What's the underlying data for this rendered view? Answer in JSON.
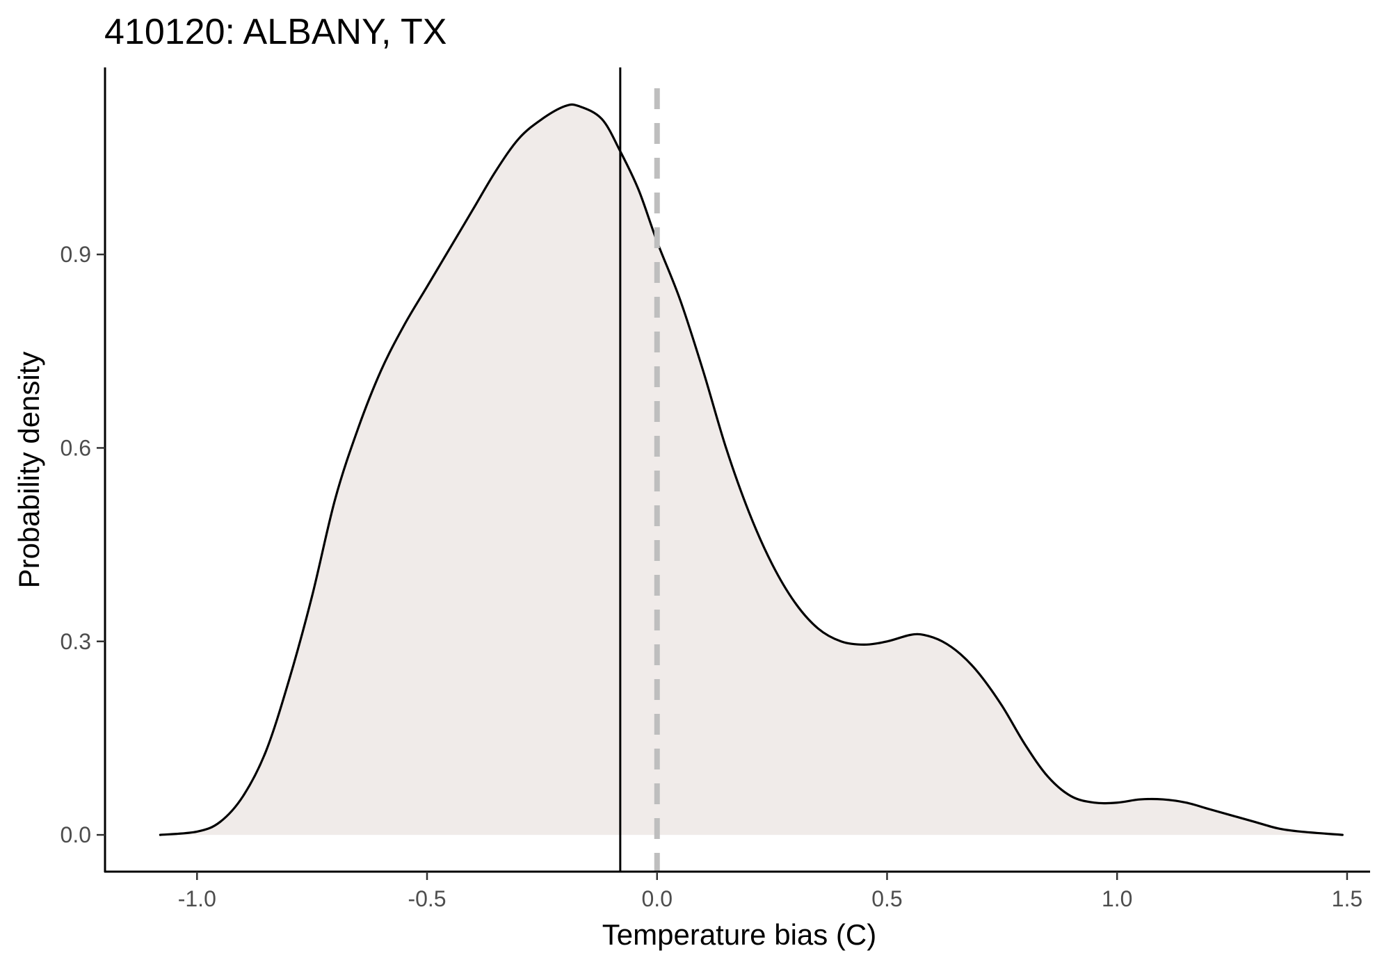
{
  "chart_data": {
    "type": "area",
    "title": "410120: ALBANY, TX",
    "xlabel": "Temperature bias (C)",
    "ylabel": "Probability density",
    "xlim": [
      -1.2,
      1.55
    ],
    "ylim": [
      -0.057,
      1.19
    ],
    "x_ticks": [
      -1.0,
      -0.5,
      0.0,
      0.5,
      1.0,
      1.5
    ],
    "x_tick_labels": [
      "-1.0",
      "-0.5",
      "0.0",
      "0.5",
      "1.0",
      "1.5"
    ],
    "y_ticks": [
      0.0,
      0.3,
      0.6,
      0.9
    ],
    "y_tick_labels": [
      "0.0",
      "0.3",
      "0.6",
      "0.9"
    ],
    "grid": false,
    "fill_color": "#f0ebe9",
    "line_color": "#000000",
    "series": [
      {
        "x": [
          -1.08,
          -1.0,
          -0.95,
          -0.9,
          -0.85,
          -0.8,
          -0.75,
          -0.7,
          -0.65,
          -0.6,
          -0.55,
          -0.5,
          -0.45,
          -0.4,
          -0.35,
          -0.3,
          -0.25,
          -0.2,
          -0.17,
          -0.12,
          -0.08,
          -0.04,
          0.0,
          0.05,
          0.1,
          0.15,
          0.2,
          0.25,
          0.3,
          0.35,
          0.4,
          0.45,
          0.5,
          0.55,
          0.58,
          0.62,
          0.66,
          0.7,
          0.75,
          0.8,
          0.85,
          0.9,
          0.95,
          1.0,
          1.05,
          1.1,
          1.15,
          1.2,
          1.25,
          1.3,
          1.35,
          1.4,
          1.49
        ],
        "y": [
          0.0,
          0.005,
          0.02,
          0.06,
          0.13,
          0.24,
          0.37,
          0.52,
          0.63,
          0.72,
          0.79,
          0.85,
          0.91,
          0.97,
          1.03,
          1.08,
          1.11,
          1.13,
          1.13,
          1.11,
          1.06,
          1.0,
          0.92,
          0.83,
          0.72,
          0.6,
          0.5,
          0.42,
          0.36,
          0.32,
          0.3,
          0.295,
          0.3,
          0.31,
          0.31,
          0.3,
          0.28,
          0.25,
          0.2,
          0.14,
          0.09,
          0.06,
          0.05,
          0.05,
          0.055,
          0.055,
          0.05,
          0.04,
          0.03,
          0.02,
          0.01,
          0.005,
          0.0
        ]
      }
    ],
    "reference_lines": [
      {
        "x": -0.08,
        "style": "solid",
        "color": "#000000"
      },
      {
        "x": 0.0,
        "style": "dashed",
        "color": "#bebebe"
      }
    ]
  }
}
